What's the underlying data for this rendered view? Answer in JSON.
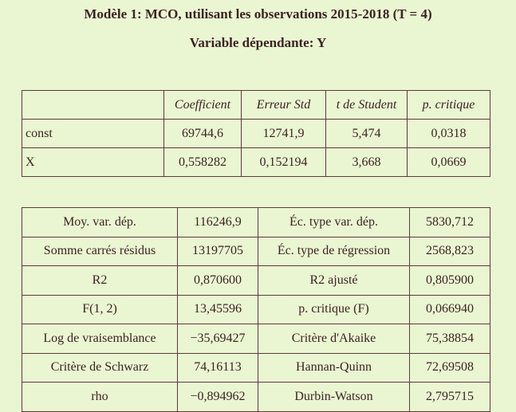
{
  "header": {
    "title": "Modèle 1: MCO, utilisant les observations 2015-2018 (T = 4)",
    "subtitle": "Variable dépendante: Y"
  },
  "table1": {
    "columns": [
      "Coefficient",
      "Erreur Std",
      "t de Student",
      "p. critique"
    ],
    "rows": [
      [
        "const",
        "69744,6",
        "12741,9",
        "5,474",
        "0,0318"
      ],
      [
        "X",
        "0,558282",
        "0,152194",
        "3,668",
        "0,0669"
      ]
    ]
  },
  "table2": {
    "rows": [
      [
        "Moy. var. dép.",
        "116246,9",
        "Éc. type var. dép.",
        "5830,712"
      ],
      [
        "Somme carrés résidus",
        "13197705",
        "Éc. type de régression",
        "2568,823"
      ],
      [
        "R2",
        "0,870600",
        "R2 ajusté",
        "0,805900"
      ],
      [
        "F(1, 2)",
        "13,45596",
        "p. critique (F)",
        "0,066940"
      ],
      [
        "Log de vraisemblance",
        "−35,69427",
        "Critère d'Akaike",
        "75,38854"
      ],
      [
        "Critère de Schwarz",
        "74,16113",
        "Hannan-Quinn",
        "72,69508"
      ],
      [
        "rho",
        "−0,894962",
        "Durbin-Watson",
        "2,795715"
      ]
    ]
  }
}
